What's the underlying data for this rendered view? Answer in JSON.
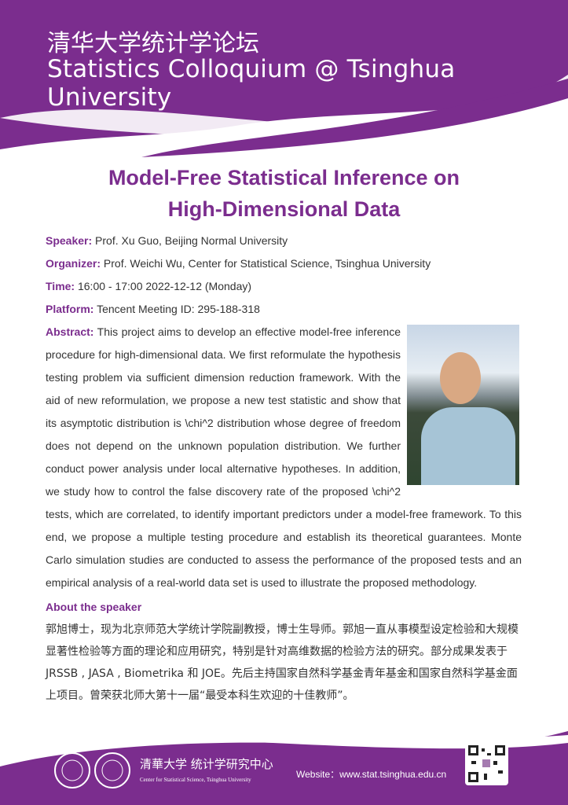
{
  "header": {
    "title_cn": "清华大学统计学论坛",
    "title_en": "Statistics Colloquium @ Tsinghua University"
  },
  "talk_title": [
    "Model-Free Statistical Inference on",
    "High-Dimensional Data"
  ],
  "details": [
    {
      "label": "Speaker:",
      "value": "Prof. Xu Guo, Beijing Normal University"
    },
    {
      "label": "Organizer:",
      "value": "Prof. Weichi Wu, Center for Statistical Science, Tsinghua University"
    },
    {
      "label": "Time:",
      "value": "16:00 - 17:00 2022-12-12 (Monday)"
    },
    {
      "label": "Platform:",
      "value": "Tencent Meeting ID: 295-188-318"
    }
  ],
  "abstract": {
    "label": "Abstract:",
    "text": "This project aims to develop an effective model-free inference procedure for high-dimensional data. We first reformulate the hypothesis testing problem via sufficient dimension reduction framework. With the aid of new reformulation, we propose a new test statistic and show that its asymptotic distribution is \\chi^2 distribution whose degree of freedom does not depend on the unknown population distribution. We further conduct power analysis under local alternative hypotheses. In addition, we study how to control the false discovery rate of the proposed \\chi^2 tests, which are correlated, to identify important predictors under a model-free framework. To this end, we propose a multiple testing procedure and establish its theoretical guarantees. Monte Carlo simulation studies are conducted to assess the performance of the proposed tests and an empirical analysis of a real-world data set is used to illustrate the proposed methodology."
  },
  "about": {
    "heading": "About the speaker",
    "text": "郭旭博士，现为北京师范大学统计学院副教授，博士生导师。郭旭一直从事模型设定检验和大规模显著性检验等方面的理论和应用研究，特别是针对高维数据的检验方法的研究。部分成果发表于 JRSSB , JASA , Biometrika 和 JOE。先后主持国家自然科学基金青年基金和国家自然科学基金面上项目。曾荣获北师大第十一届“最受本科生欢迎的十佳教师”。"
  },
  "footer": {
    "center_cn": "清華大学 统计学研究中心",
    "center_en": "Center for Statistical Science, Tsinghua University",
    "website": "Website：www.stat.tsinghua.edu.cn"
  },
  "colors": {
    "accent": "#7b2d8e"
  }
}
